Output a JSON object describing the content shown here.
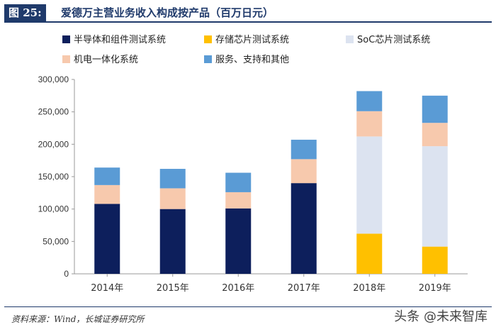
{
  "header": {
    "figure_tag": "图 25:",
    "title": "爱德万主营业务收入构成按产品（百万日元）"
  },
  "footer": {
    "source": "资料来源：Wind，长城证券研究所",
    "watermark": "头条 @未来智库"
  },
  "chart_data": {
    "type": "bar",
    "stacked": true,
    "title": "爱德万主营业务收入构成按产品（百万日元）",
    "categories": [
      "2014年",
      "2015年",
      "2016年",
      "2017年",
      "2018年",
      "2019年"
    ],
    "series": [
      {
        "name": "半导体和组件测试系统",
        "color": "#0d1f5c",
        "values": [
          108000,
          100000,
          101000,
          140000,
          0,
          0
        ]
      },
      {
        "name": "存储芯片测试系统",
        "color": "#ffc000",
        "values": [
          0,
          0,
          0,
          0,
          62000,
          42000
        ]
      },
      {
        "name": "SoC芯片测试系统",
        "color": "#dce3f0",
        "values": [
          0,
          0,
          0,
          0,
          150000,
          155000
        ]
      },
      {
        "name": "机电一体化系统",
        "color": "#f7c9ad",
        "values": [
          29000,
          32000,
          25000,
          37000,
          39000,
          36000
        ]
      },
      {
        "name": "服务、支持和其他",
        "color": "#5a9bd5",
        "values": [
          27000,
          30000,
          30000,
          30000,
          31000,
          42000
        ]
      }
    ],
    "yticks": [
      "0",
      "50,000",
      "100,000",
      "150,000",
      "200,000",
      "250,000",
      "300,000"
    ],
    "ylim": [
      0,
      300000
    ],
    "xlabel": "",
    "ylabel": "",
    "legend_position": "top"
  }
}
